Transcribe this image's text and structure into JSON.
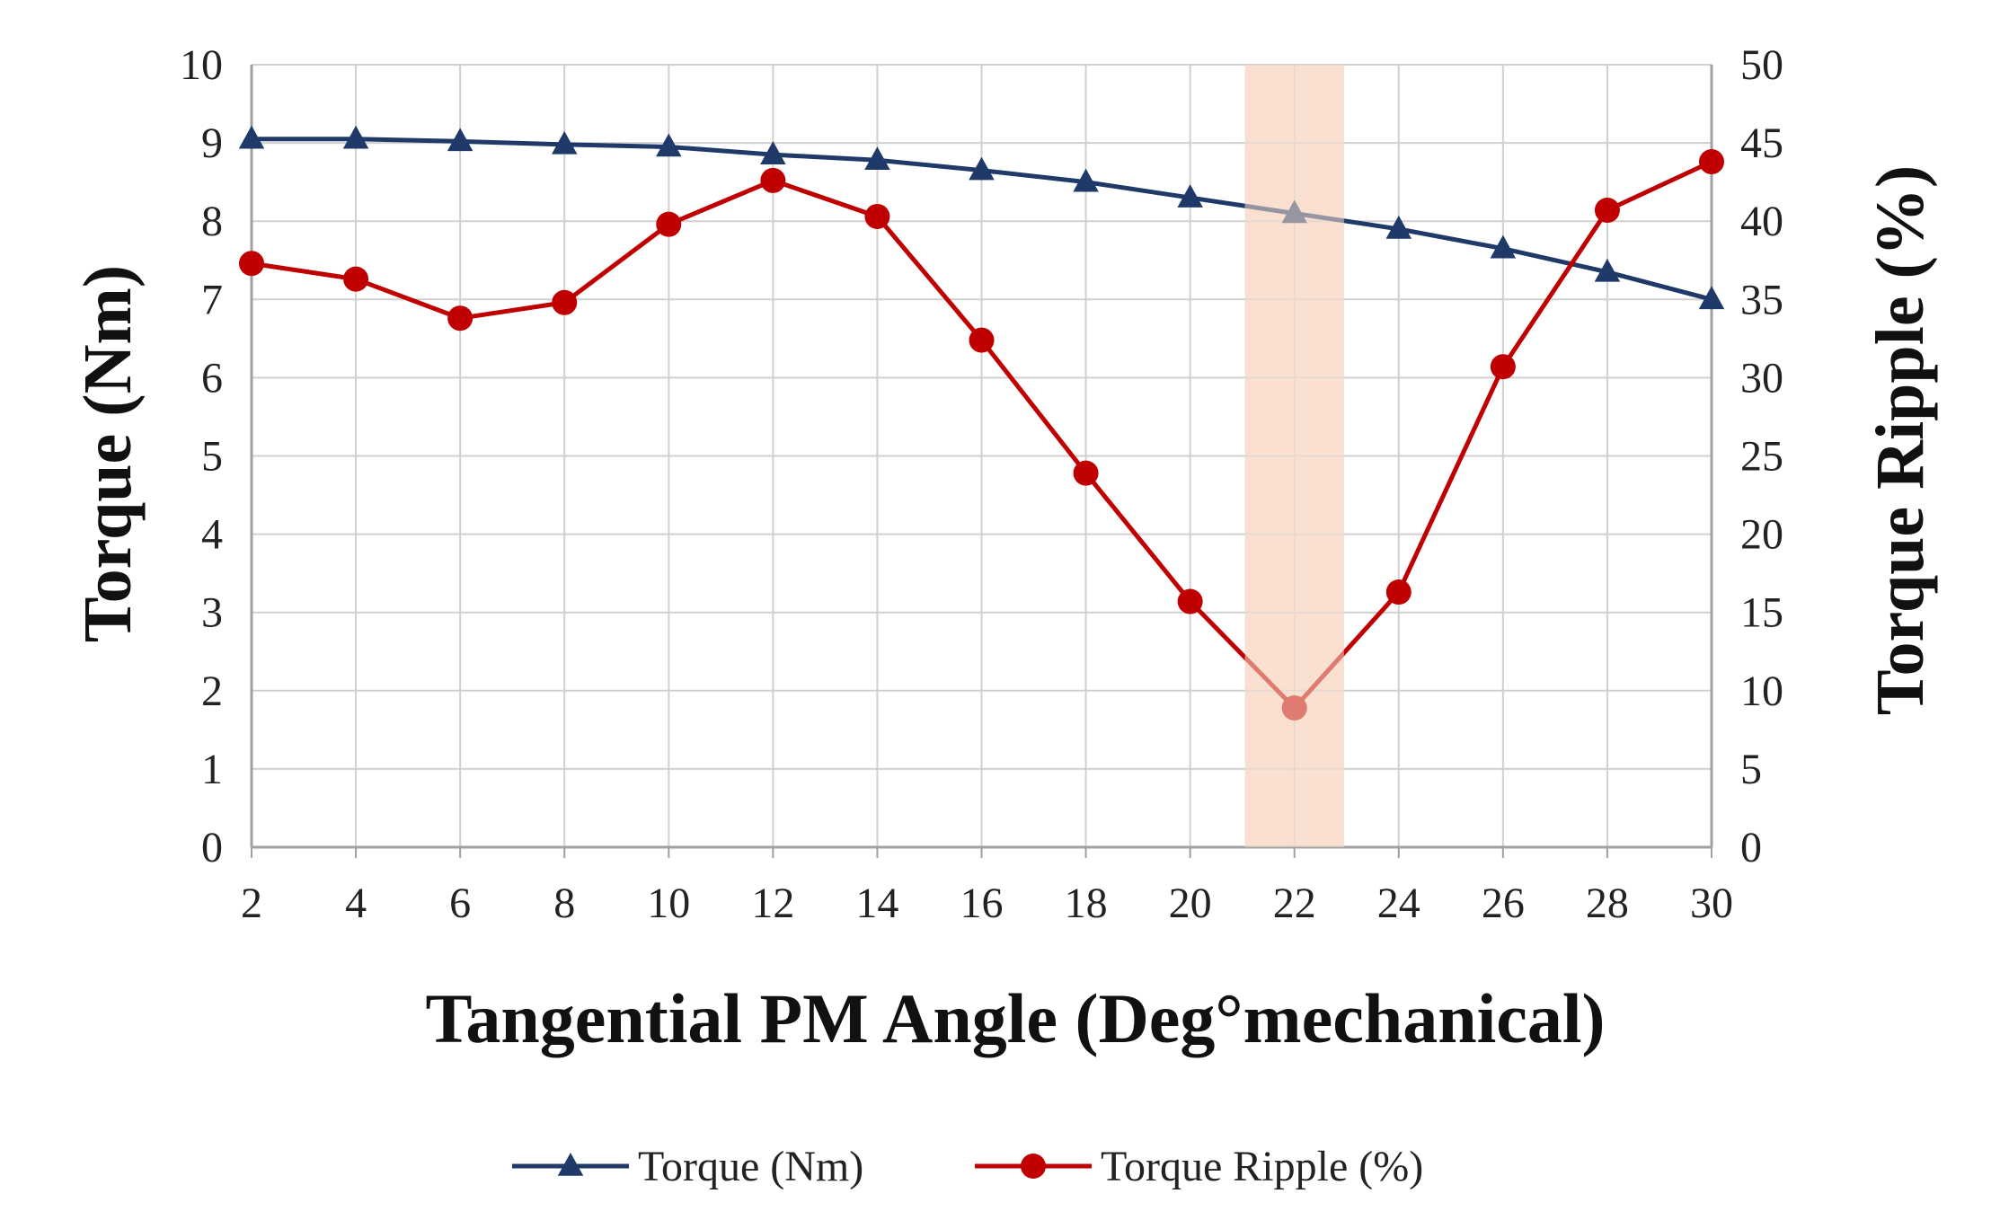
{
  "chart_data": {
    "type": "line",
    "title": "",
    "xlabel": "Tangential  PM Angle (Deg°mechanical)",
    "ylabel": "Torque  (Nm)",
    "y2label": "Torque  Ripple  (%)",
    "x": [
      2,
      4,
      6,
      8,
      10,
      12,
      14,
      16,
      18,
      20,
      22,
      24,
      26,
      28,
      30
    ],
    "x_tick_labels": [
      "2",
      "4",
      "6",
      "8",
      "10",
      "12",
      "14",
      "16",
      "18",
      "20",
      "22",
      "24",
      "26",
      "28",
      "30"
    ],
    "ylim": [
      0,
      10
    ],
    "y_tick_labels": [
      "0",
      "1",
      "2",
      "3",
      "4",
      "5",
      "6",
      "7",
      "8",
      "9",
      "10"
    ],
    "y2lim": [
      0,
      50
    ],
    "y2_tick_labels": [
      "0",
      "5",
      "10",
      "15",
      "20",
      "25",
      "30",
      "35",
      "40",
      "45",
      "50"
    ],
    "grid": true,
    "legend_position": "bottom",
    "highlight_x": 22,
    "highlight_color": "#f9e0d0",
    "series": [
      {
        "name": "Torque (Nm)",
        "axis": "left",
        "marker": "triangle",
        "color": "#1f3a68",
        "values": [
          9.05,
          9.05,
          9.02,
          8.98,
          8.95,
          8.85,
          8.78,
          8.65,
          8.5,
          8.3,
          8.1,
          7.9,
          7.65,
          7.35,
          7.0
        ]
      },
      {
        "name": "Torque Ripple (%)",
        "axis": "right",
        "marker": "circle",
        "color": "#c00000",
        "values": [
          37.3,
          36.3,
          33.8,
          34.8,
          39.8,
          42.6,
          40.3,
          32.4,
          23.9,
          15.7,
          8.9,
          16.3,
          30.7,
          40.7,
          43.8
        ]
      }
    ]
  }
}
